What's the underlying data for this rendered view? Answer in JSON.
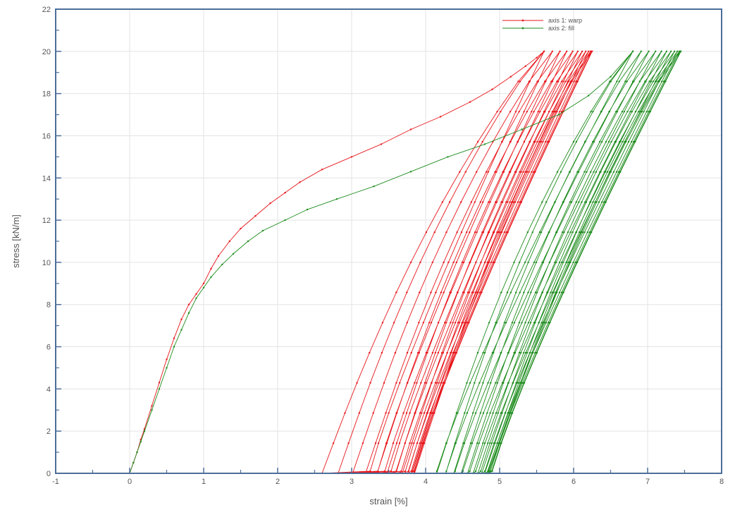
{
  "chart_data": {
    "type": "line",
    "title": "",
    "xlabel": "strain [%]",
    "ylabel": "stress [kN/m]",
    "xlim": [
      -1,
      8
    ],
    "ylim": [
      0,
      22
    ],
    "xticks": [
      -1,
      0,
      1,
      2,
      3,
      4,
      5,
      6,
      7,
      8
    ],
    "yticks": [
      0,
      2,
      4,
      6,
      8,
      10,
      12,
      14,
      16,
      18,
      20,
      22
    ],
    "grid": true,
    "legend_position": "top-right",
    "series": [
      {
        "name": "axis 1: warp",
        "color": "#e8161b",
        "initial_loading": {
          "x": [
            0,
            0.05,
            0.1,
            0.15,
            0.2,
            0.3,
            0.4,
            0.5,
            0.6,
            0.7,
            0.8,
            0.9,
            1.0,
            1.1,
            1.2,
            1.35,
            1.5,
            1.7,
            1.9,
            2.1,
            2.3,
            2.6,
            3.0,
            3.4,
            3.8,
            4.2,
            4.6,
            4.9,
            5.15,
            5.35,
            5.5,
            5.6
          ],
          "y": [
            0,
            0.5,
            1.0,
            1.6,
            2.1,
            3.2,
            4.3,
            5.4,
            6.4,
            7.3,
            8.0,
            8.5,
            9.0,
            9.7,
            10.3,
            11.0,
            11.6,
            12.2,
            12.8,
            13.3,
            13.8,
            14.4,
            15.0,
            15.6,
            16.3,
            16.9,
            17.6,
            18.2,
            18.8,
            19.3,
            19.7,
            20.0
          ]
        },
        "cycles": {
          "count": 12,
          "max_stress": 20,
          "peak_strain_first": 5.6,
          "peak_strain_last": 6.25,
          "residual_strain_first": 2.6,
          "residual_strain_last": 3.85,
          "reload_start_first": 3.25,
          "reload_start_last": 3.85
        }
      },
      {
        "name": "axis 2: fill",
        "color": "#1d8c1d",
        "initial_loading": {
          "x": [
            0,
            0.05,
            0.1,
            0.15,
            0.2,
            0.3,
            0.4,
            0.5,
            0.6,
            0.7,
            0.8,
            0.9,
            1.0,
            1.1,
            1.25,
            1.4,
            1.6,
            1.8,
            2.1,
            2.4,
            2.8,
            3.3,
            3.8,
            4.3,
            4.8,
            5.3,
            5.8,
            6.2,
            6.5,
            6.8
          ],
          "y": [
            0,
            0.5,
            1.0,
            1.5,
            2.0,
            3.0,
            4.0,
            5.0,
            6.0,
            6.8,
            7.6,
            8.3,
            8.8,
            9.3,
            9.9,
            10.4,
            11.0,
            11.5,
            12.0,
            12.5,
            13.0,
            13.6,
            14.3,
            15.0,
            15.6,
            16.3,
            17.0,
            17.9,
            18.8,
            20.0
          ]
        },
        "cycles": {
          "count": 12,
          "max_stress": 20,
          "peak_strain_first": 6.8,
          "peak_strain_last": 7.45,
          "residual_strain_first": 4.15,
          "residual_strain_last": 4.85,
          "reload_start_first": 4.15,
          "reload_start_last": 4.9
        }
      }
    ]
  }
}
